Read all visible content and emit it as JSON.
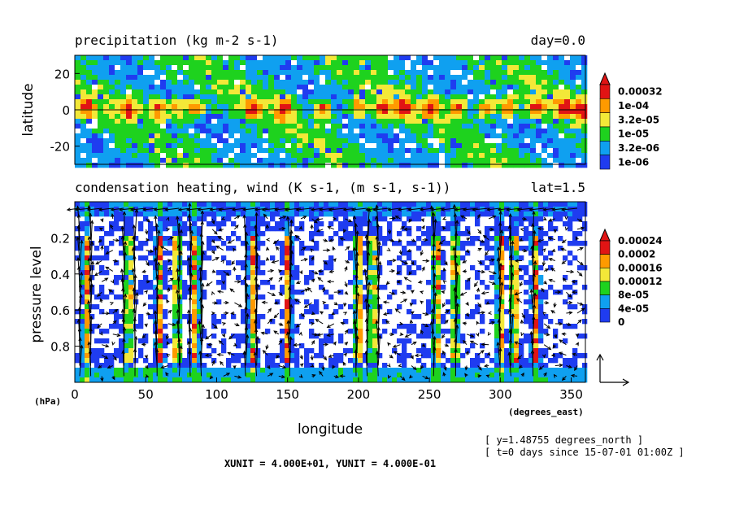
{
  "chart_data": [
    {
      "type": "heatmap",
      "title": "precipitation (kg m-2 s-1)",
      "title_right": "day=0.0",
      "ylabel": "latitude",
      "xlim": [
        0,
        360
      ],
      "ylim": [
        -30,
        30
      ],
      "y_ticks": [
        "20",
        "0",
        "-20"
      ],
      "y_tick_values": [
        20,
        0,
        -20
      ],
      "zero_line": true,
      "colorbar": {
        "labels": [
          "0.00032",
          "1e-04",
          "3.2e-05",
          "1e-05",
          "3.2e-06",
          "1e-06"
        ],
        "colors": [
          "#e11414",
          "#ff9a00",
          "#f3e838",
          "#1ed21e",
          "#0fa0f0",
          "#1f3cf0"
        ],
        "top_triangle_color": "#e11414"
      },
      "palette": [
        "#ffffff",
        "#1f3cf0",
        "#0fa0f0",
        "#1ed21e",
        "#f3e838",
        "#ff9a00",
        "#e11414"
      ],
      "rain_centers_lon": [
        8,
        38,
        58,
        72,
        85,
        125,
        148,
        175,
        200,
        218,
        232,
        252,
        270,
        290,
        305,
        325,
        345,
        358
      ]
    },
    {
      "type": "heatmap",
      "title": "condensation heating, wind (K s-1, (m s-1, s-1))",
      "title_right": "lat=1.5",
      "xlabel": "longitude",
      "ylabel": "pressure level",
      "y_unit": "(hPa)",
      "x_unit": "(degrees_east)",
      "xlim": [
        0,
        360
      ],
      "ylim": [
        0,
        1
      ],
      "x_ticks": [
        "0",
        "50",
        "100",
        "150",
        "200",
        "250",
        "300",
        "350"
      ],
      "x_tick_values": [
        0,
        50,
        100,
        150,
        200,
        250,
        300,
        350
      ],
      "y_ticks": [
        "0.2",
        "0.4",
        "0.6",
        "0.8"
      ],
      "y_tick_values": [
        0.2,
        0.4,
        0.6,
        0.8
      ],
      "colorbar": {
        "labels": [
          "0.00024",
          "0.0002",
          "0.00016",
          "0.00012",
          "8e-05",
          "4e-05",
          "0"
        ],
        "colors": [
          "#e11414",
          "#ff9a00",
          "#f3e838",
          "#1ed21e",
          "#0fa0f0",
          "#1f3cf0"
        ],
        "top_triangle_color": "#e11414"
      },
      "heating_columns_lon": [
        8,
        38,
        60,
        72,
        85,
        125,
        150,
        200,
        210,
        255,
        268,
        300,
        310,
        325
      ],
      "vector_reference": "XUNIT = 4.000E+01, YUNIT = 4.000E-01"
    }
  ],
  "footnotes": {
    "line1": "[ y=1.48755 degrees_north ]",
    "line2": "[ t=0 days since 15-07-01 01:00Z ]"
  }
}
